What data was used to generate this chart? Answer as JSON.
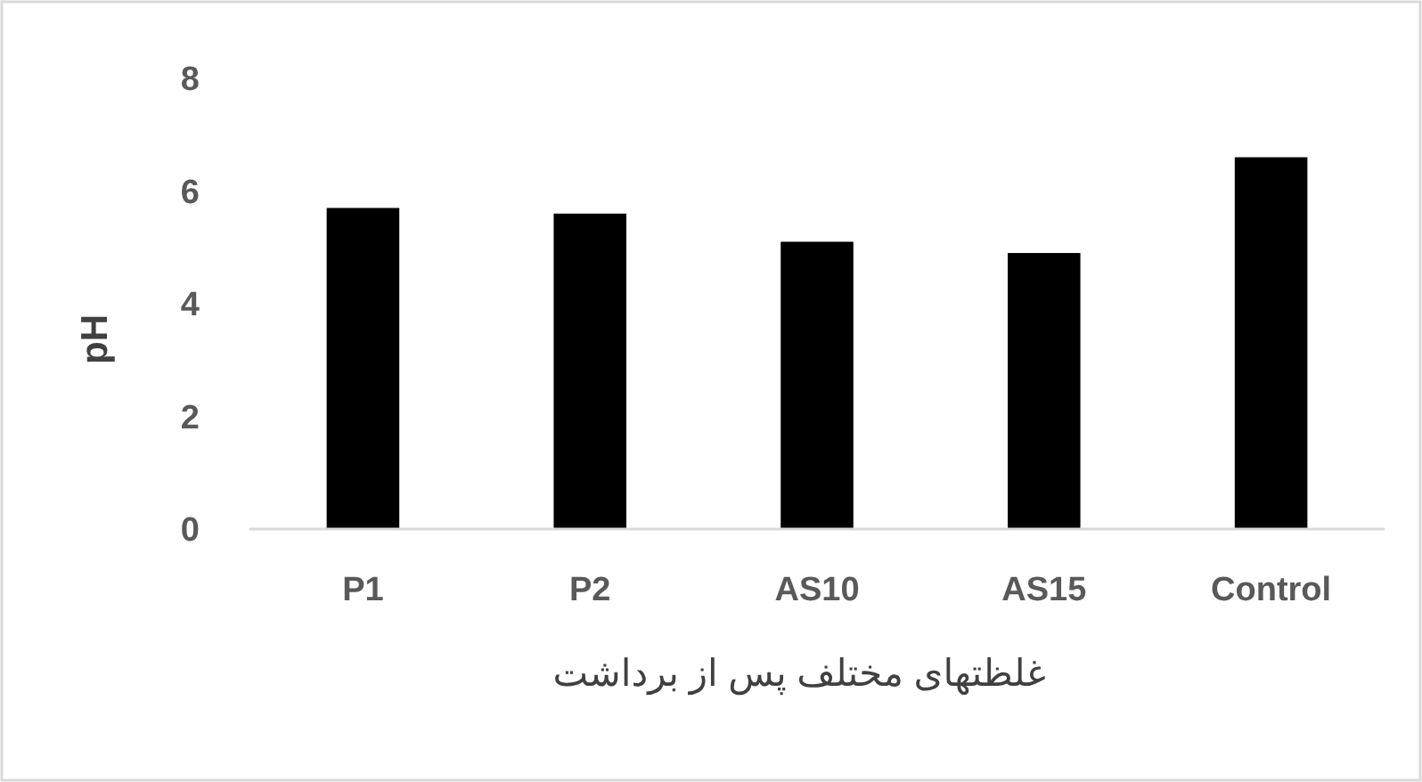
{
  "chart_data": {
    "type": "bar",
    "categories": [
      "P1",
      "P2",
      "AS10",
      "AS15",
      "Control"
    ],
    "values": [
      5.7,
      5.6,
      5.1,
      4.9,
      6.6
    ],
    "color": "#000000",
    "xlabel": "غلظتهای مختلف پس از برداشت",
    "ylabel": "pH",
    "ylim": [
      0,
      8
    ],
    "yticks": [
      0,
      2,
      4,
      6,
      8
    ],
    "grid": false
  }
}
